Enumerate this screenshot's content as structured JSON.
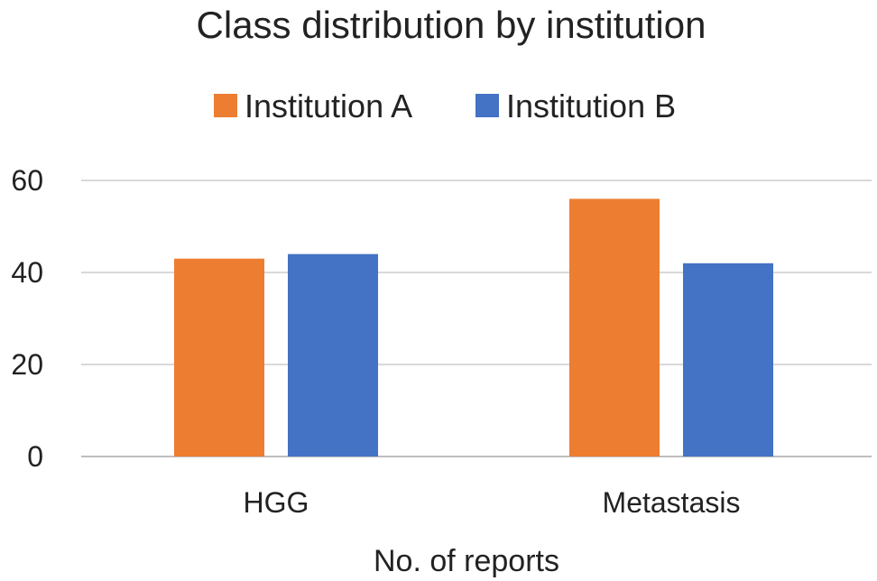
{
  "chart_data": {
    "type": "bar",
    "title": "Class distribution by institution",
    "xlabel": "No. of reports",
    "ylabel": "",
    "categories": [
      "HGG",
      "Metastasis"
    ],
    "series": [
      {
        "name": "Institution A",
        "values": [
          43,
          56
        ],
        "color": "#ED7D31"
      },
      {
        "name": "Institution B",
        "values": [
          44,
          42
        ],
        "color": "#4472C4"
      }
    ],
    "ylim": [
      0,
      60
    ],
    "yticks": [
      0,
      20,
      40,
      60
    ],
    "grid": true,
    "legend_position": "top"
  }
}
